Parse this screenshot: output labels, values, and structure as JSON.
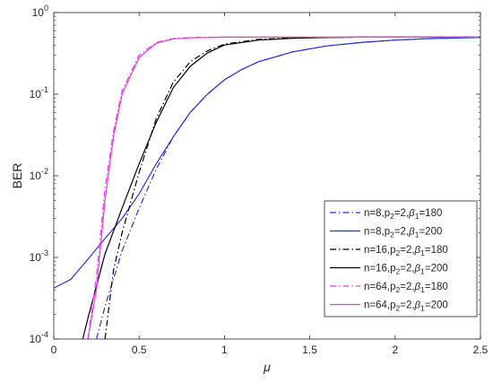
{
  "chart_data": {
    "type": "line",
    "title": "",
    "xlabel": "μ",
    "ylabel": "BER",
    "xlim": [
      0,
      2.5
    ],
    "ylim": [
      0.0001,
      1
    ],
    "yscale": "log",
    "grid": false,
    "legend_position": "bottom-right",
    "x_ticks": [
      {
        "value": 0,
        "label": "0"
      },
      {
        "value": 0.5,
        "label": "0.5"
      },
      {
        "value": 1,
        "label": "1"
      },
      {
        "value": 1.5,
        "label": "1.5"
      },
      {
        "value": 2,
        "label": "2"
      },
      {
        "value": 2.5,
        "label": "2.5"
      }
    ],
    "y_ticks": [
      {
        "value": 0.0001,
        "base": "10",
        "exp": "-4"
      },
      {
        "value": 0.001,
        "base": "10",
        "exp": "-3"
      },
      {
        "value": 0.01,
        "base": "10",
        "exp": "-2"
      },
      {
        "value": 0.1,
        "base": "10",
        "exp": "-1"
      },
      {
        "value": 1,
        "base": "10",
        "exp": "0"
      }
    ],
    "series": [
      {
        "name": "n=8,p2=2,β1=180",
        "legend_parts": [
          "n=8,p",
          "2",
          "=2,",
          "β",
          "1",
          "=180"
        ],
        "color": "#2f2fd6",
        "dash": "dashdot",
        "x": [
          0.25,
          0.3,
          0.4,
          0.5,
          0.6,
          0.7,
          0.8,
          0.9,
          1.0,
          1.1,
          1.2,
          1.4,
          1.6,
          1.8,
          2.0,
          2.2,
          2.5
        ],
        "y": [
          0.0001,
          0.00025,
          0.0012,
          0.004,
          0.012,
          0.03,
          0.06,
          0.1,
          0.15,
          0.2,
          0.25,
          0.33,
          0.39,
          0.43,
          0.46,
          0.48,
          0.495
        ]
      },
      {
        "name": "n=8,p2=2,β1=200",
        "legend_parts": [
          "n=8,p",
          "2",
          "=2,",
          "β",
          "1",
          "=200"
        ],
        "color": "#2f2fd6",
        "dash": "solid",
        "x": [
          0,
          0.1,
          0.2,
          0.3,
          0.4,
          0.5,
          0.6,
          0.7,
          0.8,
          0.9,
          1.0,
          1.1,
          1.2,
          1.4,
          1.6,
          1.8,
          2.0,
          2.2,
          2.5
        ],
        "y": [
          0.00042,
          0.00054,
          0.00095,
          0.0017,
          0.003,
          0.006,
          0.014,
          0.03,
          0.06,
          0.1,
          0.15,
          0.2,
          0.25,
          0.33,
          0.39,
          0.43,
          0.46,
          0.48,
          0.495
        ]
      },
      {
        "name": "n=16,p2=2,β1=180",
        "legend_parts": [
          "n=16,p",
          "2",
          "=2,",
          "β",
          "1",
          "=180"
        ],
        "color": "#000000",
        "dash": "dashdot",
        "x": [
          0.3,
          0.35,
          0.4,
          0.5,
          0.6,
          0.7,
          0.8,
          0.9,
          1.0,
          1.2,
          1.4,
          1.6,
          1.8,
          2.0,
          2.5
        ],
        "y": [
          0.0001,
          0.0007,
          0.002,
          0.011,
          0.05,
          0.14,
          0.25,
          0.34,
          0.41,
          0.47,
          0.49,
          0.495,
          0.5,
          0.5,
          0.5
        ]
      },
      {
        "name": "n=16,p2=2,β1=200",
        "legend_parts": [
          "n=16,p",
          "2",
          "=2,",
          "β",
          "1",
          "=200"
        ],
        "color": "#000000",
        "dash": "solid",
        "x": [
          0.17,
          0.2,
          0.3,
          0.4,
          0.5,
          0.6,
          0.7,
          0.8,
          0.9,
          1.0,
          1.2,
          1.4,
          1.6,
          1.8,
          2.0,
          2.5
        ],
        "y": [
          0.0001,
          0.00018,
          0.0011,
          0.004,
          0.014,
          0.045,
          0.12,
          0.22,
          0.32,
          0.4,
          0.46,
          0.485,
          0.495,
          0.5,
          0.5,
          0.5
        ]
      },
      {
        "name": "n=64,p2=2,β1=180",
        "legend_parts": [
          "n=64,p",
          "2",
          "=2,",
          "β",
          "1",
          "=180"
        ],
        "color": "#e63be6",
        "dash": "dashdot",
        "x": [
          0.2,
          0.25,
          0.3,
          0.35,
          0.4,
          0.5,
          0.6,
          0.7,
          0.8,
          1.0,
          1.5,
          2.0,
          2.5
        ],
        "y": [
          0.0001,
          0.0006,
          0.007,
          0.035,
          0.11,
          0.3,
          0.43,
          0.48,
          0.495,
          0.5,
          0.5,
          0.5,
          0.5
        ]
      },
      {
        "name": "n=64,p2=2,β1=200",
        "legend_parts": [
          "n=64,p",
          "2",
          "=2,",
          "β",
          "1",
          "=200"
        ],
        "color": "#e63be6",
        "dash": "solid",
        "x": [
          0.2,
          0.25,
          0.3,
          0.35,
          0.4,
          0.5,
          0.6,
          0.7,
          0.8,
          1.0,
          1.5,
          2.0,
          2.5
        ],
        "y": [
          0.0001,
          0.0004,
          0.005,
          0.03,
          0.1,
          0.28,
          0.42,
          0.475,
          0.49,
          0.5,
          0.5,
          0.5,
          0.5
        ]
      }
    ]
  }
}
